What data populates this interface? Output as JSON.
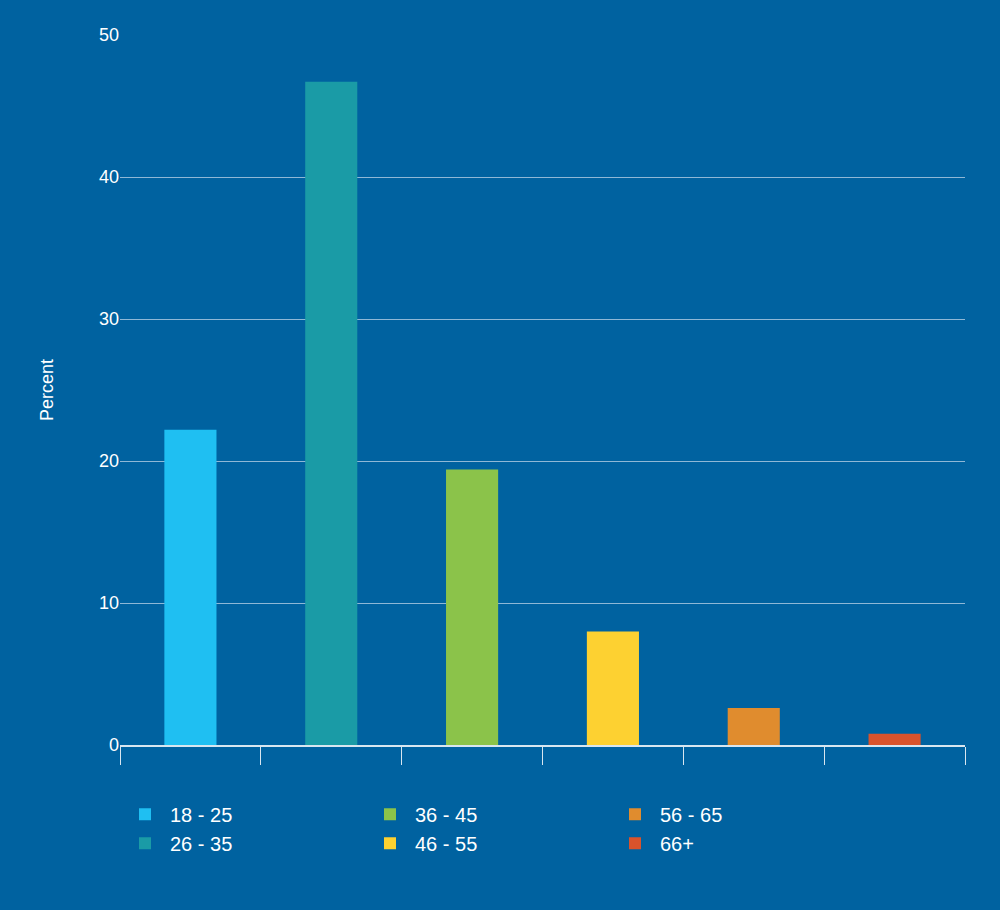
{
  "chart_data": {
    "type": "bar",
    "y_label": "Percent",
    "categories": [
      "18 - 25",
      "26 - 35",
      "36 - 45",
      "46 - 55",
      "56 - 65",
      "66+"
    ],
    "values": [
      22.2,
      46.7,
      19.4,
      8.0,
      2.6,
      0.8
    ],
    "colors": [
      "#1fbff2",
      "#1a9ba6",
      "#8bc34a",
      "#fdd131",
      "#e08c2e",
      "#d9532c"
    ],
    "ylim": [
      0,
      50
    ],
    "yticks": [
      0,
      10,
      20,
      30,
      40,
      50
    ],
    "grid": true,
    "tick_labels": "y",
    "legend": "bottom"
  }
}
